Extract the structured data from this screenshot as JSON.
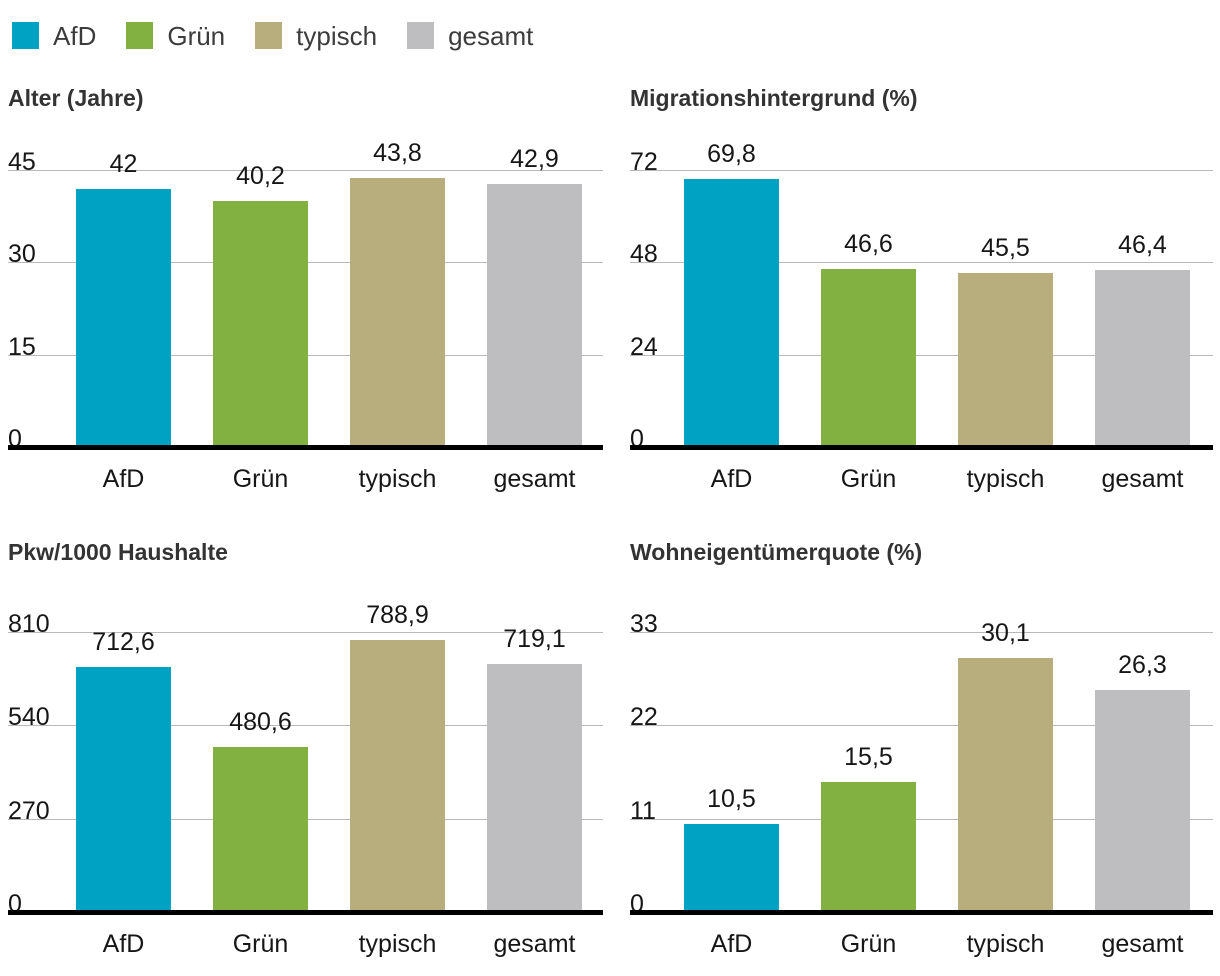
{
  "legend": {
    "items": [
      {
        "id": "afd",
        "label": "AfD",
        "color": "#00a2c4"
      },
      {
        "id": "gruen",
        "label": "Grün",
        "color": "#82b142"
      },
      {
        "id": "typisch",
        "label": "typisch",
        "color": "#b7ad7d"
      },
      {
        "id": "gesamt",
        "label": "gesamt",
        "color": "#bebec0"
      }
    ]
  },
  "colors": {
    "afd": "#00a2c4",
    "gruen": "#82b142",
    "typisch": "#b7ad7d",
    "gesamt": "#bebec0",
    "gridline": "#b9b9b9",
    "baseline": "#000000",
    "title_text": "#333333",
    "label_text": "#161616"
  },
  "chart_data": [
    {
      "type": "bar",
      "title": "Alter (Jahre)",
      "categories": [
        "AfD",
        "Grün",
        "typisch",
        "gesamt"
      ],
      "values": [
        42,
        40.2,
        43.8,
        42.9
      ],
      "value_labels": [
        "42",
        "40,2",
        "43,8",
        "42,9"
      ],
      "yticks": [
        0,
        15,
        30,
        45
      ],
      "ytick_labels": [
        "0",
        "15",
        "30",
        "45"
      ],
      "ylim": [
        0,
        45
      ],
      "grid": "on",
      "legend_position": "top-left-shared",
      "bar_colors": [
        "#00a2c4",
        "#82b142",
        "#b7ad7d",
        "#bebec0"
      ]
    },
    {
      "type": "bar",
      "title": "Migrationshintergrund (%)",
      "categories": [
        "AfD",
        "Grün",
        "typisch",
        "gesamt"
      ],
      "values": [
        69.8,
        46.6,
        45.5,
        46.4
      ],
      "value_labels": [
        "69,8",
        "46,6",
        "45,5",
        "46,4"
      ],
      "yticks": [
        0,
        24,
        48,
        72
      ],
      "ytick_labels": [
        "0",
        "24",
        "48",
        "72"
      ],
      "ylim": [
        0,
        72
      ],
      "grid": "on",
      "legend_position": "top-left-shared",
      "bar_colors": [
        "#00a2c4",
        "#82b142",
        "#b7ad7d",
        "#bebec0"
      ]
    },
    {
      "type": "bar",
      "title": "Pkw/1000 Haushalte",
      "categories": [
        "AfD",
        "Grün",
        "typisch",
        "gesamt"
      ],
      "values": [
        712.6,
        480.6,
        788.9,
        719.1
      ],
      "value_labels": [
        "712,6",
        "480,6",
        "788,9",
        "719,1"
      ],
      "yticks": [
        0,
        270,
        540,
        810
      ],
      "ytick_labels": [
        "0",
        "270",
        "540",
        "810"
      ],
      "ylim": [
        0,
        810
      ],
      "grid": "on",
      "legend_position": "top-left-shared",
      "bar_colors": [
        "#00a2c4",
        "#82b142",
        "#b7ad7d",
        "#bebec0"
      ]
    },
    {
      "type": "bar",
      "title": "Wohneigentümerquote (%)",
      "categories": [
        "AfD",
        "Grün",
        "typisch",
        "gesamt"
      ],
      "values": [
        10.5,
        15.5,
        30.1,
        26.3
      ],
      "value_labels": [
        "10,5",
        "15,5",
        "30,1",
        "26,3"
      ],
      "yticks": [
        0,
        11,
        22,
        33
      ],
      "ytick_labels": [
        "0",
        "11",
        "22",
        "33"
      ],
      "ylim": [
        0,
        33
      ],
      "grid": "on",
      "legend_position": "top-left-shared",
      "bar_colors": [
        "#00a2c4",
        "#82b142",
        "#b7ad7d",
        "#bebec0"
      ]
    }
  ]
}
